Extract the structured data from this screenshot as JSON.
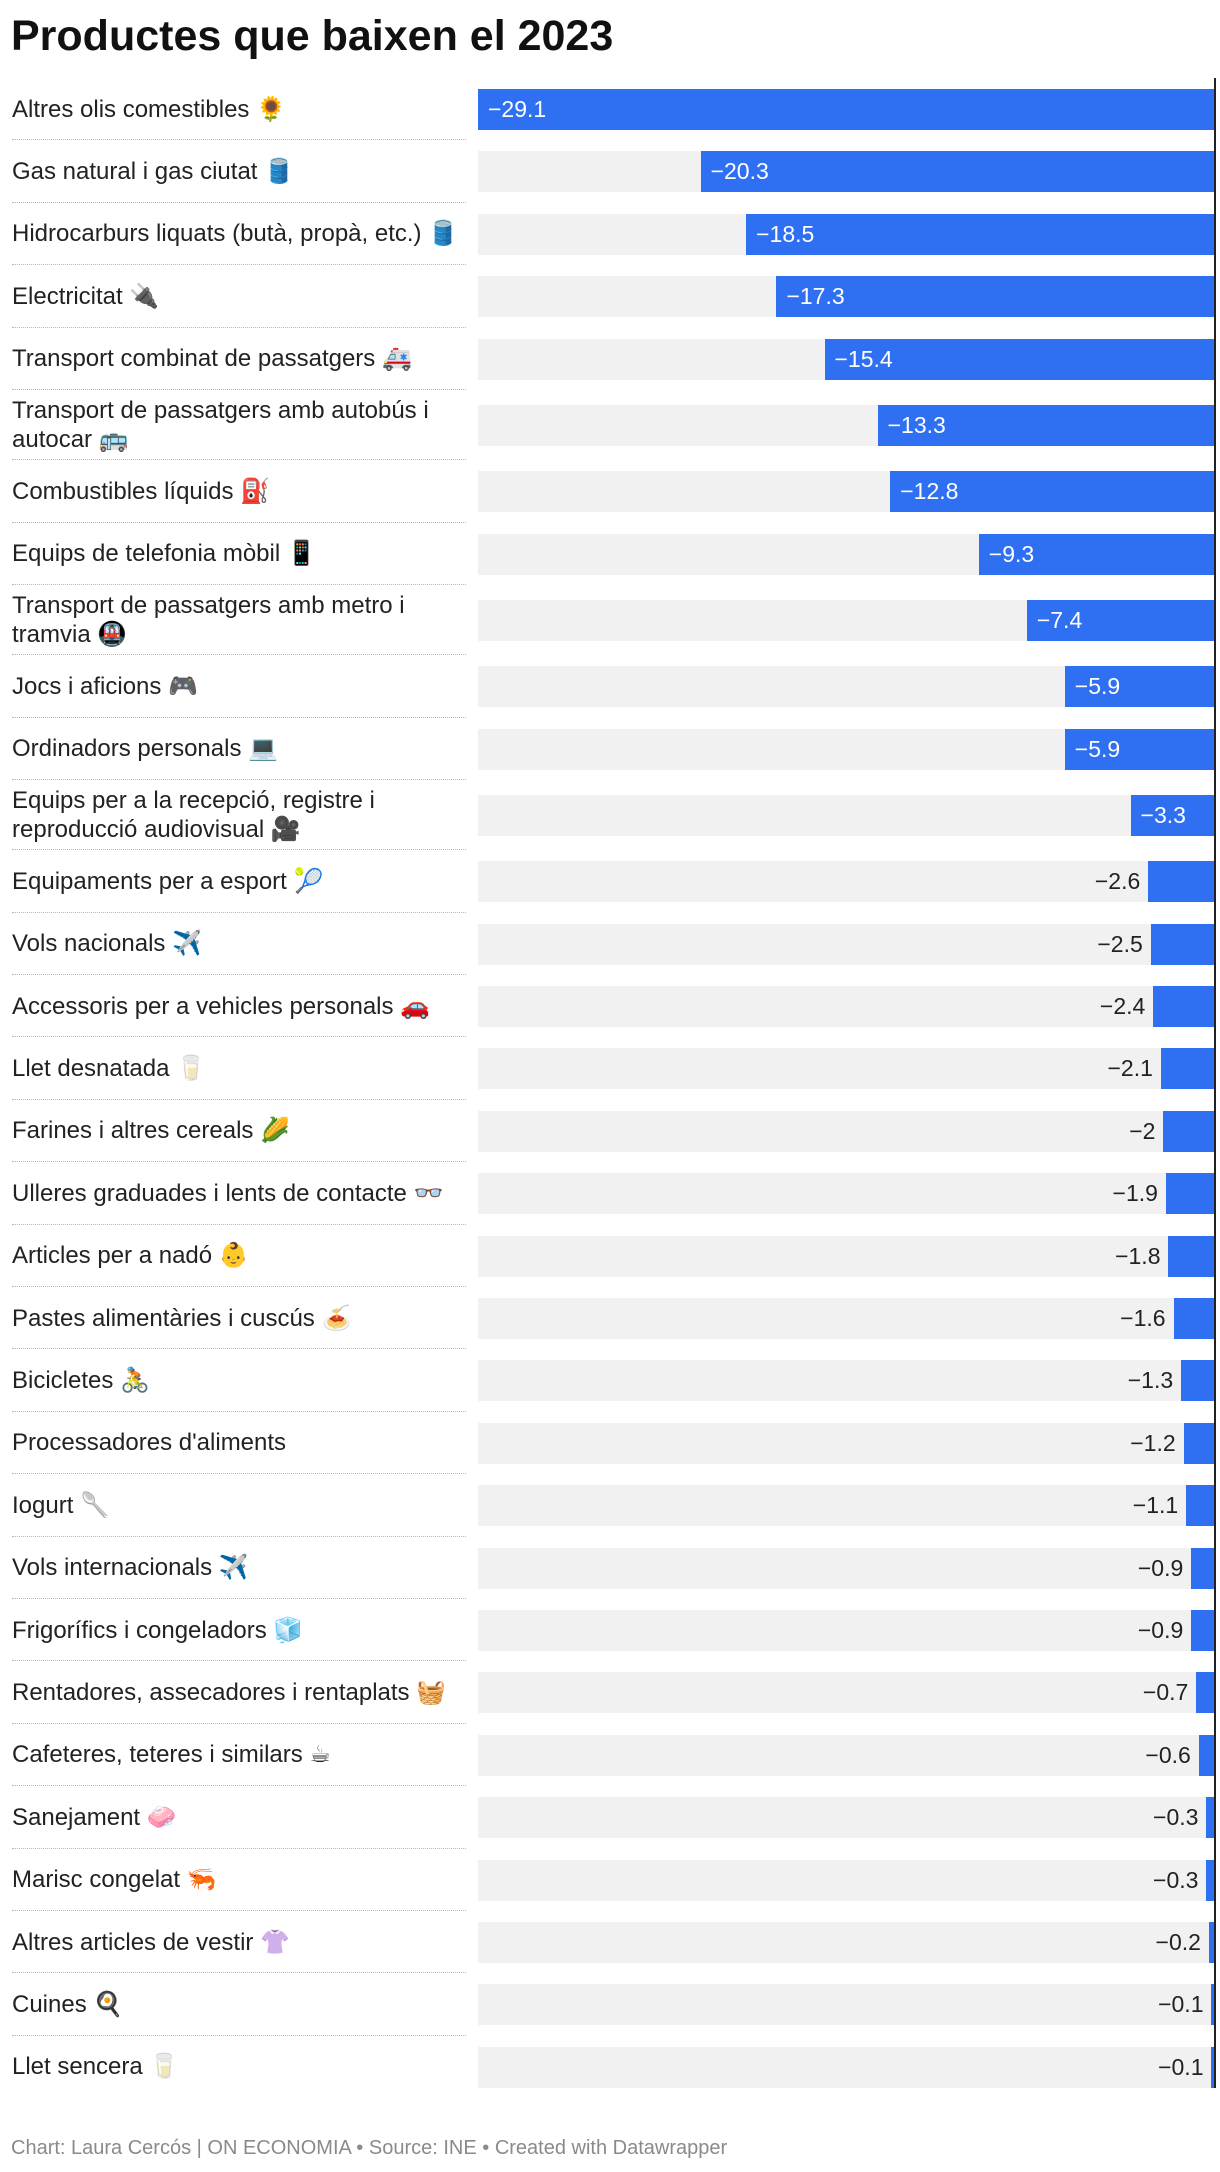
{
  "chart_data": {
    "type": "bar",
    "orientation": "horizontal",
    "title": "Productes que baixen el 2023",
    "xlim": [
      -29.1,
      0
    ],
    "bar_color": "#2f6ff1",
    "background_bar_color": "#f1f1f1",
    "categories": [
      "Altres olis comestibles 🌻",
      "Gas natural i gas ciutat 🛢️",
      "Hidrocarburs liquats (butà, propà, etc.) 🛢️",
      "Electricitat 🔌",
      "Transport combinat de passatgers 🚑",
      "Transport de passatgers amb autobús i autocar 🚌",
      "Combustibles líquids ⛽",
      "Equips de telefonia mòbil 📱",
      "Transport de passatgers amb metro i tramvia 🚇",
      "Jocs i aficions 🎮",
      "Ordinadors personals 💻",
      "Equips per a la recepció, registre i reproducció audiovisual 🎥",
      "Equipaments per a esport 🎾",
      "Vols nacionals ✈️",
      "Accessoris per a vehicles personals 🚗",
      "Llet desnatada 🥛",
      "Farines i altres cereals 🌽",
      "Ulleres graduades i lents de contacte 👓",
      "Articles per a nadó 👶",
      "Pastes alimentàries i cuscús 🍝",
      "Bicicletes 🚴",
      "Processadores d'aliments",
      "Iogurt 🥄",
      "Vols internacionals ✈️",
      "Frigorífics i congeladors 🧊",
      "Rentadores, assecadores i rentaplats 🧺",
      "Cafeteres, teteres i similars ☕",
      "Sanejament 🧼",
      "Marisc congelat 🦐",
      "Altres articles de vestir 👚",
      "Cuines 🍳",
      "Llet sencera 🥛"
    ],
    "values": [
      -29.1,
      -20.3,
      -18.5,
      -17.3,
      -15.4,
      -13.3,
      -12.8,
      -9.3,
      -7.4,
      -5.9,
      -5.9,
      -3.3,
      -2.6,
      -2.5,
      -2.4,
      -2.1,
      -2,
      -1.9,
      -1.8,
      -1.6,
      -1.3,
      -1.2,
      -1.1,
      -0.9,
      -0.9,
      -0.7,
      -0.6,
      -0.3,
      -0.3,
      -0.2,
      -0.1,
      -0.1
    ],
    "value_labels": [
      "−29.1",
      "−20.3",
      "−18.5",
      "−17.3",
      "−15.4",
      "−13.3",
      "−12.8",
      "−9.3",
      "−7.4",
      "−5.9",
      "−5.9",
      "−3.3",
      "−2.6",
      "−2.5",
      "−2.4",
      "−2.1",
      "−2",
      "−1.9",
      "−1.8",
      "−1.6",
      "−1.3",
      "−1.2",
      "−1.1",
      "−0.9",
      "−0.9",
      "−0.7",
      "−0.6",
      "−0.3",
      "−0.3",
      "−0.2",
      "−0.1",
      "−0.1"
    ]
  },
  "footer": {
    "credit": "Chart: Laura Cercós | ON ECONOMIA",
    "source": "Source: INE",
    "tool": "Created with Datawrapper",
    "separator": " • "
  }
}
